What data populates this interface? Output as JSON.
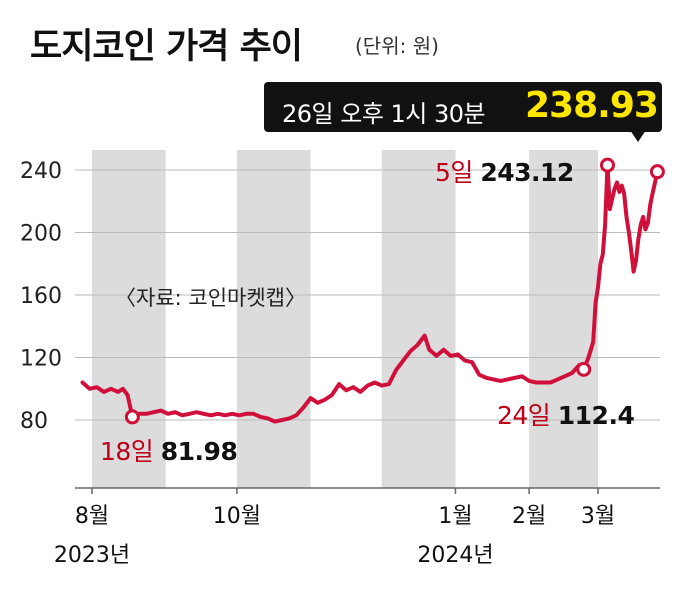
{
  "title": "도지코인 가격 추이",
  "unit": "(단위: 원)",
  "source": "〈자료: 코인마켓캡〉",
  "callout": {
    "label": "26일 오후 1시 30분",
    "value": "238.93"
  },
  "annotations": [
    {
      "day": "18일",
      "value": "81.98"
    },
    {
      "day": "24일",
      "value": "112.4"
    },
    {
      "day": "5일",
      "value": "243.12"
    }
  ],
  "colors": {
    "line": "#d0103a",
    "marker_fill": "#ffffff",
    "band": "#dcdcdc",
    "grid": "#bbbbbb",
    "callout_bg": "#111111",
    "callout_value": "#ffe600",
    "annotation_day": "#c0001a"
  },
  "chart_data": {
    "type": "line",
    "title": "도지코인 가격 추이",
    "ylabel": "(단위: 원)",
    "ylim": [
      40,
      260
    ],
    "yticks": [
      80,
      120,
      160,
      200,
      240
    ],
    "grid": true,
    "x_ticks": [
      {
        "label": "8월",
        "date": "2023-08-01"
      },
      {
        "label": "10월",
        "date": "2023-10-01"
      },
      {
        "label": "1월",
        "date": "2024-01-01"
      },
      {
        "label": "2월",
        "date": "2024-02-01"
      },
      {
        "label": "3월",
        "date": "2024-03-01"
      }
    ],
    "year_labels": [
      {
        "label": "2023년",
        "date": "2023-08-01"
      },
      {
        "label": "2024년",
        "date": "2024-01-01"
      }
    ],
    "series": [
      {
        "points": [
          [
            "2023-07-28",
            104
          ],
          [
            "2023-07-31",
            100
          ],
          [
            "2023-08-03",
            101
          ],
          [
            "2023-08-06",
            98
          ],
          [
            "2023-08-09",
            100
          ],
          [
            "2023-08-12",
            98
          ],
          [
            "2023-08-14",
            100
          ],
          [
            "2023-08-16",
            96
          ],
          [
            "2023-08-18",
            81.98
          ],
          [
            "2023-08-21",
            84
          ],
          [
            "2023-08-24",
            84
          ],
          [
            "2023-08-27",
            85
          ],
          [
            "2023-08-30",
            86
          ],
          [
            "2023-09-02",
            84
          ],
          [
            "2023-09-05",
            85
          ],
          [
            "2023-09-08",
            83
          ],
          [
            "2023-09-11",
            84
          ],
          [
            "2023-09-14",
            85
          ],
          [
            "2023-09-17",
            84
          ],
          [
            "2023-09-20",
            83
          ],
          [
            "2023-09-23",
            84
          ],
          [
            "2023-09-26",
            83
          ],
          [
            "2023-09-29",
            84
          ],
          [
            "2023-10-02",
            83
          ],
          [
            "2023-10-05",
            84
          ],
          [
            "2023-10-08",
            84
          ],
          [
            "2023-10-11",
            82
          ],
          [
            "2023-10-14",
            81
          ],
          [
            "2023-10-17",
            79
          ],
          [
            "2023-10-20",
            80
          ],
          [
            "2023-10-23",
            81
          ],
          [
            "2023-10-26",
            83
          ],
          [
            "2023-10-29",
            88
          ],
          [
            "2023-11-01",
            94
          ],
          [
            "2023-11-04",
            91
          ],
          [
            "2023-11-07",
            93
          ],
          [
            "2023-11-10",
            96
          ],
          [
            "2023-11-13",
            103
          ],
          [
            "2023-11-16",
            99
          ],
          [
            "2023-11-19",
            101
          ],
          [
            "2023-11-22",
            98
          ],
          [
            "2023-11-25",
            102
          ],
          [
            "2023-11-28",
            104
          ],
          [
            "2023-12-01",
            102
          ],
          [
            "2023-12-04",
            103
          ],
          [
            "2023-12-07",
            112
          ],
          [
            "2023-12-10",
            118
          ],
          [
            "2023-12-13",
            124
          ],
          [
            "2023-12-16",
            128
          ],
          [
            "2023-12-19",
            134
          ],
          [
            "2023-12-21",
            125
          ],
          [
            "2023-12-24",
            121
          ],
          [
            "2023-12-27",
            125
          ],
          [
            "2023-12-30",
            121
          ],
          [
            "2024-01-02",
            122
          ],
          [
            "2024-01-05",
            118
          ],
          [
            "2024-01-08",
            117
          ],
          [
            "2024-01-11",
            109
          ],
          [
            "2024-01-14",
            107
          ],
          [
            "2024-01-17",
            106
          ],
          [
            "2024-01-20",
            105
          ],
          [
            "2024-01-23",
            106
          ],
          [
            "2024-01-26",
            107
          ],
          [
            "2024-01-29",
            108
          ],
          [
            "2024-02-01",
            105
          ],
          [
            "2024-02-04",
            104
          ],
          [
            "2024-02-07",
            104
          ],
          [
            "2024-02-10",
            104
          ],
          [
            "2024-02-13",
            106
          ],
          [
            "2024-02-16",
            108
          ],
          [
            "2024-02-19",
            110
          ],
          [
            "2024-02-22",
            115
          ],
          [
            "2024-02-24",
            112.4
          ],
          [
            "2024-02-26",
            120
          ],
          [
            "2024-02-28",
            130
          ],
          [
            "2024-02-29",
            155
          ],
          [
            "2024-03-01",
            165
          ],
          [
            "2024-03-02",
            180
          ],
          [
            "2024-03-03",
            186
          ],
          [
            "2024-03-04",
            205
          ],
          [
            "2024-03-05",
            243.12
          ],
          [
            "2024-03-06",
            215
          ],
          [
            "2024-03-07",
            222
          ],
          [
            "2024-03-08",
            228
          ],
          [
            "2024-03-09",
            232
          ],
          [
            "2024-03-10",
            226
          ],
          [
            "2024-03-11",
            230
          ],
          [
            "2024-03-12",
            225
          ],
          [
            "2024-03-13",
            210
          ],
          [
            "2024-03-14",
            200
          ],
          [
            "2024-03-15",
            188
          ],
          [
            "2024-03-16",
            175
          ],
          [
            "2024-03-17",
            182
          ],
          [
            "2024-03-18",
            196
          ],
          [
            "2024-03-19",
            205
          ],
          [
            "2024-03-20",
            210
          ],
          [
            "2024-03-21",
            202
          ],
          [
            "2024-03-22",
            206
          ],
          [
            "2024-03-23",
            218
          ],
          [
            "2024-03-24",
            225
          ],
          [
            "2024-03-25",
            232
          ],
          [
            "2024-03-26",
            238.93
          ]
        ]
      }
    ],
    "highlighted_points": [
      {
        "date": "2023-08-18",
        "value": 81.98
      },
      {
        "date": "2024-02-24",
        "value": 112.4
      },
      {
        "date": "2024-03-05",
        "value": 243.12
      },
      {
        "date": "2024-03-26",
        "value": 238.93
      }
    ],
    "shaded_months": [
      "2023-08",
      "2023-10",
      "2023-12",
      "2024-02"
    ]
  }
}
